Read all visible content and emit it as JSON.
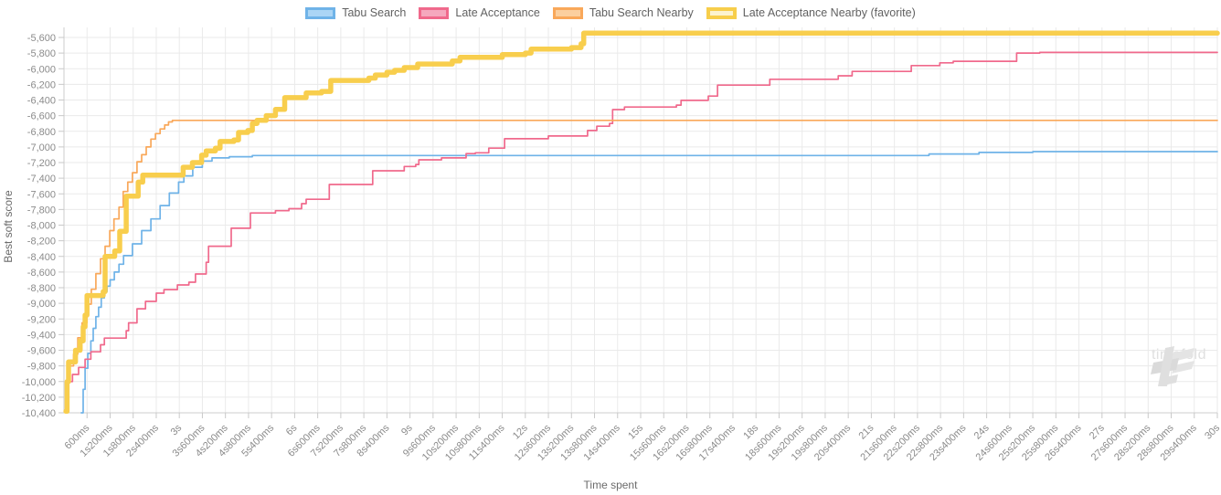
{
  "legend": {
    "items": [
      {
        "label": "Tabu Search",
        "fill": "#ABD5F5",
        "border": "#6FB3E8",
        "border_width": 3
      },
      {
        "label": "Late Acceptance",
        "fill": "#F5A8BE",
        "border": "#F0698C",
        "border_width": 3
      },
      {
        "label": "Tabu Search Nearby",
        "fill": "#FBCF9E",
        "border": "#F9A85A",
        "border_width": 3
      },
      {
        "label": "Late Acceptance Nearby (favorite)",
        "fill": "#FCF3CE",
        "border": "#F7CE4B",
        "border_width": 4
      }
    ]
  },
  "axes": {
    "y_title": "Best soft score",
    "x_title": "Time spent",
    "y_ticks": [
      {
        "value": -5600,
        "label": "-5,600"
      },
      {
        "value": -5800,
        "label": "-5,800"
      },
      {
        "value": -6000,
        "label": "-6,000"
      },
      {
        "value": -6200,
        "label": "-6,200"
      },
      {
        "value": -6400,
        "label": "-6,400"
      },
      {
        "value": -6600,
        "label": "-6,600"
      },
      {
        "value": -6800,
        "label": "-6,800"
      },
      {
        "value": -7000,
        "label": "-7,000"
      },
      {
        "value": -7200,
        "label": "-7,200"
      },
      {
        "value": -7400,
        "label": "-7,400"
      },
      {
        "value": -7600,
        "label": "-7,600"
      },
      {
        "value": -7800,
        "label": "-7,800"
      },
      {
        "value": -8000,
        "label": "-8,000"
      },
      {
        "value": -8200,
        "label": "-8,200"
      },
      {
        "value": -8400,
        "label": "-8,400"
      },
      {
        "value": -8600,
        "label": "-8,600"
      },
      {
        "value": -8800,
        "label": "-8,800"
      },
      {
        "value": -9000,
        "label": "-9,000"
      },
      {
        "value": -9200,
        "label": "-9,200"
      },
      {
        "value": -9400,
        "label": "-9,400"
      },
      {
        "value": -9600,
        "label": "-9,600"
      },
      {
        "value": -9800,
        "label": "-9,800"
      },
      {
        "value": -10000,
        "label": "-10,000"
      },
      {
        "value": -10200,
        "label": "-10,200"
      },
      {
        "value": -10400,
        "label": "-10,400"
      }
    ],
    "x_ticks": [
      {
        "ms": 600,
        "label": "600ms"
      },
      {
        "ms": 1200,
        "label": "1s200ms"
      },
      {
        "ms": 1800,
        "label": "1s800ms"
      },
      {
        "ms": 2400,
        "label": "2s400ms"
      },
      {
        "ms": 3000,
        "label": "3s"
      },
      {
        "ms": 3600,
        "label": "3s600ms"
      },
      {
        "ms": 4200,
        "label": "4s200ms"
      },
      {
        "ms": 4800,
        "label": "4s800ms"
      },
      {
        "ms": 5400,
        "label": "5s400ms"
      },
      {
        "ms": 6000,
        "label": "6s"
      },
      {
        "ms": 6600,
        "label": "6s600ms"
      },
      {
        "ms": 7200,
        "label": "7s200ms"
      },
      {
        "ms": 7800,
        "label": "7s800ms"
      },
      {
        "ms": 8400,
        "label": "8s400ms"
      },
      {
        "ms": 9000,
        "label": "9s"
      },
      {
        "ms": 9600,
        "label": "9s600ms"
      },
      {
        "ms": 10200,
        "label": "10s200ms"
      },
      {
        "ms": 10800,
        "label": "10s800ms"
      },
      {
        "ms": 11400,
        "label": "11s400ms"
      },
      {
        "ms": 12000,
        "label": "12s"
      },
      {
        "ms": 12600,
        "label": "12s600ms"
      },
      {
        "ms": 13200,
        "label": "13s200ms"
      },
      {
        "ms": 13800,
        "label": "13s800ms"
      },
      {
        "ms": 14400,
        "label": "14s400ms"
      },
      {
        "ms": 15000,
        "label": "15s"
      },
      {
        "ms": 15600,
        "label": "15s600ms"
      },
      {
        "ms": 16200,
        "label": "16s200ms"
      },
      {
        "ms": 16800,
        "label": "16s800ms"
      },
      {
        "ms": 17400,
        "label": "17s400ms"
      },
      {
        "ms": 18000,
        "label": "18s"
      },
      {
        "ms": 18600,
        "label": "18s600ms"
      },
      {
        "ms": 19200,
        "label": "19s200ms"
      },
      {
        "ms": 19800,
        "label": "19s800ms"
      },
      {
        "ms": 20400,
        "label": "20s400ms"
      },
      {
        "ms": 21000,
        "label": "21s"
      },
      {
        "ms": 21600,
        "label": "21s600ms"
      },
      {
        "ms": 22200,
        "label": "22s200ms"
      },
      {
        "ms": 22800,
        "label": "22s800ms"
      },
      {
        "ms": 23400,
        "label": "23s400ms"
      },
      {
        "ms": 24000,
        "label": "24s"
      },
      {
        "ms": 24600,
        "label": "24s600ms"
      },
      {
        "ms": 25200,
        "label": "25s200ms"
      },
      {
        "ms": 25800,
        "label": "25s800ms"
      },
      {
        "ms": 26400,
        "label": "26s400ms"
      },
      {
        "ms": 27000,
        "label": "27s"
      },
      {
        "ms": 27600,
        "label": "27s600ms"
      },
      {
        "ms": 28200,
        "label": "28s200ms"
      },
      {
        "ms": 28800,
        "label": "28s800ms"
      },
      {
        "ms": 29400,
        "label": "29s400ms"
      },
      {
        "ms": 30000,
        "label": "30s"
      }
    ]
  },
  "watermark": {
    "text": "timefold"
  },
  "colors": {
    "grid": "#eaeaea",
    "axis_border": "#cccccc",
    "tick_mark": "#c9c9c9",
    "tick_text": "#8b8b8b",
    "axis_title_text": "#6b6b6b",
    "legend_text": "#616161",
    "watermark": "#e2e2e2",
    "background": "#ffffff"
  },
  "chart_data": {
    "type": "line",
    "stepped": true,
    "title": "",
    "xlabel": "Time spent",
    "ylabel": "Best soft score",
    "x_unit": "seconds",
    "xlim": [
      0,
      30
    ],
    "ylim": [
      -10450,
      -5470
    ],
    "grid": true,
    "legend_position": "top",
    "series": [
      {
        "name": "Tabu Search",
        "color": "#6FB3E8",
        "width": 1.7,
        "points": [
          [
            0.45,
            -10400
          ],
          [
            0.5,
            -10100
          ],
          [
            0.55,
            -9830
          ],
          [
            0.62,
            -9640
          ],
          [
            0.7,
            -9480
          ],
          [
            0.76,
            -9320
          ],
          [
            0.83,
            -9170
          ],
          [
            0.9,
            -9050
          ],
          [
            0.97,
            -8930
          ],
          [
            1.05,
            -8850
          ],
          [
            1.12,
            -8780
          ],
          [
            1.2,
            -8700
          ],
          [
            1.31,
            -8600
          ],
          [
            1.43,
            -8500
          ],
          [
            1.55,
            -8390
          ],
          [
            1.78,
            -8240
          ],
          [
            2.02,
            -8070
          ],
          [
            2.26,
            -7920
          ],
          [
            2.5,
            -7750
          ],
          [
            2.74,
            -7590
          ],
          [
            2.98,
            -7450
          ],
          [
            3.12,
            -7370
          ],
          [
            3.35,
            -7260
          ],
          [
            3.6,
            -7180
          ],
          [
            3.85,
            -7140
          ],
          [
            4.3,
            -7125
          ],
          [
            4.9,
            -7110
          ],
          [
            22.5,
            -7090
          ],
          [
            23.8,
            -7070
          ],
          [
            25.2,
            -7060
          ],
          [
            30,
            -7060
          ]
        ]
      },
      {
        "name": "Late Acceptance",
        "color": "#F0698C",
        "width": 1.7,
        "points": [
          [
            0.05,
            -10300
          ],
          [
            0.09,
            -10000
          ],
          [
            0.22,
            -9910
          ],
          [
            0.38,
            -9820
          ],
          [
            0.55,
            -9715
          ],
          [
            0.7,
            -9620
          ],
          [
            0.95,
            -9530
          ],
          [
            1.05,
            -9445
          ],
          [
            1.62,
            -9350
          ],
          [
            1.68,
            -9250
          ],
          [
            1.9,
            -9070
          ],
          [
            2.12,
            -8975
          ],
          [
            2.4,
            -8870
          ],
          [
            2.6,
            -8825
          ],
          [
            2.95,
            -8765
          ],
          [
            3.25,
            -8730
          ],
          [
            3.42,
            -8625
          ],
          [
            3.7,
            -8475
          ],
          [
            3.76,
            -8270
          ],
          [
            4.35,
            -8040
          ],
          [
            4.85,
            -7845
          ],
          [
            5.5,
            -7815
          ],
          [
            5.85,
            -7790
          ],
          [
            6.18,
            -7725
          ],
          [
            6.3,
            -7670
          ],
          [
            6.9,
            -7480
          ],
          [
            8.03,
            -7305
          ],
          [
            8.85,
            -7250
          ],
          [
            9.15,
            -7225
          ],
          [
            9.23,
            -7165
          ],
          [
            9.82,
            -7140
          ],
          [
            10.46,
            -7085
          ],
          [
            10.7,
            -7075
          ],
          [
            11.05,
            -7015
          ],
          [
            11.46,
            -6895
          ],
          [
            12.6,
            -6860
          ],
          [
            13.62,
            -6790
          ],
          [
            13.86,
            -6735
          ],
          [
            14.19,
            -6700
          ],
          [
            14.27,
            -6523
          ],
          [
            14.58,
            -6490
          ],
          [
            15.93,
            -6465
          ],
          [
            16.05,
            -6405
          ],
          [
            16.76,
            -6350
          ],
          [
            17.0,
            -6210
          ],
          [
            18.36,
            -6135
          ],
          [
            20.14,
            -6090
          ],
          [
            20.5,
            -6035
          ],
          [
            22.04,
            -5960
          ],
          [
            22.78,
            -5925
          ],
          [
            23.13,
            -5905
          ],
          [
            24.78,
            -5800
          ],
          [
            25.38,
            -5792
          ],
          [
            30,
            -5790
          ]
        ]
      },
      {
        "name": "Tabu Search Nearby",
        "color": "#F9A85A",
        "width": 1.7,
        "points": [
          [
            0.05,
            -10300
          ],
          [
            0.08,
            -9950
          ],
          [
            0.15,
            -9800
          ],
          [
            0.25,
            -9650
          ],
          [
            0.36,
            -9440
          ],
          [
            0.47,
            -9250
          ],
          [
            0.6,
            -9010
          ],
          [
            0.71,
            -8820
          ],
          [
            0.83,
            -8620
          ],
          [
            0.95,
            -8430
          ],
          [
            1.07,
            -8270
          ],
          [
            1.19,
            -8070
          ],
          [
            1.3,
            -7920
          ],
          [
            1.43,
            -7770
          ],
          [
            1.54,
            -7570
          ],
          [
            1.66,
            -7450
          ],
          [
            1.78,
            -7330
          ],
          [
            1.9,
            -7190
          ],
          [
            2.02,
            -7100
          ],
          [
            2.14,
            -7000
          ],
          [
            2.26,
            -6900
          ],
          [
            2.38,
            -6830
          ],
          [
            2.5,
            -6770
          ],
          [
            2.62,
            -6720
          ],
          [
            2.72,
            -6680
          ],
          [
            2.82,
            -6660
          ],
          [
            30,
            -6660
          ]
        ]
      },
      {
        "name": "Late Acceptance Nearby (favorite)",
        "color": "#F8CE4D",
        "width": 5.5,
        "points": [
          [
            0.05,
            -10380
          ],
          [
            0.08,
            -10000
          ],
          [
            0.12,
            -9750
          ],
          [
            0.3,
            -9600
          ],
          [
            0.42,
            -9480
          ],
          [
            0.5,
            -9300
          ],
          [
            0.55,
            -9150
          ],
          [
            0.6,
            -8900
          ],
          [
            1.02,
            -8850
          ],
          [
            1.07,
            -8400
          ],
          [
            1.32,
            -8330
          ],
          [
            1.45,
            -8080
          ],
          [
            1.62,
            -7630
          ],
          [
            1.93,
            -7450
          ],
          [
            2.05,
            -7360
          ],
          [
            3.1,
            -7260
          ],
          [
            3.34,
            -7200
          ],
          [
            3.58,
            -7105
          ],
          [
            3.7,
            -7050
          ],
          [
            3.94,
            -7015
          ],
          [
            4.06,
            -6930
          ],
          [
            4.42,
            -6910
          ],
          [
            4.54,
            -6815
          ],
          [
            4.78,
            -6790
          ],
          [
            4.9,
            -6700
          ],
          [
            5.02,
            -6660
          ],
          [
            5.26,
            -6600
          ],
          [
            5.5,
            -6520
          ],
          [
            5.74,
            -6370
          ],
          [
            6.3,
            -6310
          ],
          [
            6.7,
            -6290
          ],
          [
            6.94,
            -6150
          ],
          [
            7.93,
            -6120
          ],
          [
            8.1,
            -6080
          ],
          [
            8.4,
            -6045
          ],
          [
            8.6,
            -6020
          ],
          [
            8.85,
            -5985
          ],
          [
            9.2,
            -5940
          ],
          [
            10.1,
            -5900
          ],
          [
            10.3,
            -5855
          ],
          [
            11.4,
            -5820
          ],
          [
            12.0,
            -5800
          ],
          [
            12.15,
            -5750
          ],
          [
            13.2,
            -5730
          ],
          [
            13.45,
            -5680
          ],
          [
            13.52,
            -5545
          ],
          [
            30,
            -5545
          ]
        ]
      }
    ]
  }
}
